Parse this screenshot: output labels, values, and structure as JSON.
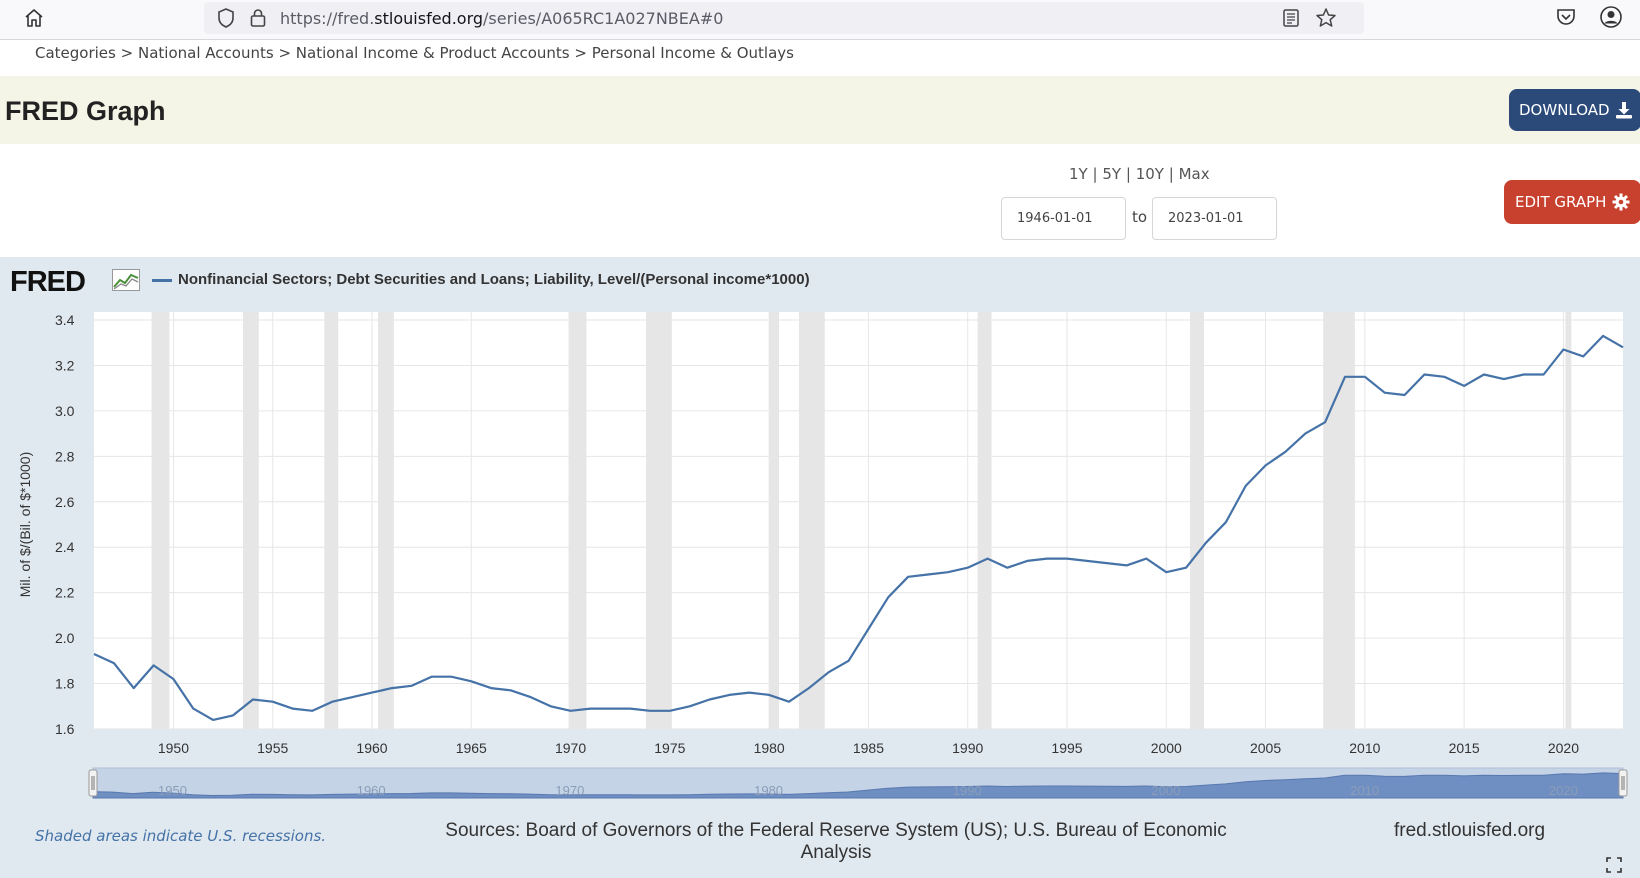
{
  "browser": {
    "url_prefix": "https://fred.",
    "url_domain": "stlouisfed.org",
    "url_path": "/series/A065RC1A027NBEA#0",
    "icons": [
      "home-icon",
      "shield-icon",
      "lock-icon",
      "reader-view-icon",
      "bookmark-star-icon",
      "pocket-icon",
      "account-icon"
    ]
  },
  "breadcrumb": {
    "items": [
      "Categories",
      "National Accounts",
      "National Income & Product Accounts",
      "Personal Income & Outlays"
    ],
    "separator": ">"
  },
  "header": {
    "title": "FRED Graph",
    "download_label": "DOWNLOAD",
    "download_color": "#2b4a7a"
  },
  "controls": {
    "ranges": [
      "1Y",
      "5Y",
      "10Y",
      "Max"
    ],
    "range_separator": "|",
    "start_date": "1946-01-01",
    "to_label": "to",
    "end_date": "2023-01-01",
    "edit_label": "EDIT GRAPH",
    "edit_color": "#c8402e"
  },
  "graph": {
    "logo_text": "FRED",
    "legend_label": "Nonfinancial Sectors; Debt Securities and Loans; Liability, Level/(Personal income*1000)",
    "recession_note": "Shaded areas indicate U.S. recessions.",
    "sources_line1": "Sources: Board of Governors of the Federal Reserve System (US); U.S. Bureau of Economic",
    "sources_line2": "Analysis",
    "site": "fred.stlouisfed.org"
  },
  "chart_data": {
    "type": "line",
    "title": "",
    "ylabel": "Mil. of $/(Bil. of $*1000)",
    "xlabel": "",
    "ylim": [
      1.6,
      3.4
    ],
    "xlim": [
      1946,
      2023
    ],
    "yticks": [
      "1.6",
      "1.8",
      "2.0",
      "2.2",
      "2.4",
      "2.6",
      "2.8",
      "3.0",
      "3.2",
      "3.4"
    ],
    "xticks": [
      "1950",
      "1955",
      "1960",
      "1965",
      "1970",
      "1975",
      "1980",
      "1985",
      "1990",
      "1995",
      "2000",
      "2005",
      "2010",
      "2015",
      "2020"
    ],
    "navigator_ticks": [
      "1950",
      "1960",
      "1970",
      "1980",
      "1990",
      "2000",
      "2010",
      "2020"
    ],
    "grid": true,
    "line_color": "#4572a7",
    "recession_color": "#e6e6e6",
    "recessions": [
      [
        1948.9,
        1949.8
      ],
      [
        1953.5,
        1954.3
      ],
      [
        1957.6,
        1958.3
      ],
      [
        1960.3,
        1961.1
      ],
      [
        1969.9,
        1970.8
      ],
      [
        1973.8,
        1975.1
      ],
      [
        1980.0,
        1980.5
      ],
      [
        1981.5,
        1982.8
      ],
      [
        1990.5,
        1991.2
      ],
      [
        2001.2,
        2001.9
      ],
      [
        2007.9,
        2009.5
      ],
      [
        2020.1,
        2020.4
      ]
    ],
    "series": [
      {
        "name": "Nonfinancial Sectors; Debt Securities and Loans; Liability, Level/(Personal income*1000)",
        "x": [
          1946,
          1947,
          1948,
          1949,
          1950,
          1951,
          1952,
          1953,
          1954,
          1955,
          1956,
          1957,
          1958,
          1959,
          1960,
          1961,
          1962,
          1963,
          1964,
          1965,
          1966,
          1967,
          1968,
          1969,
          1970,
          1971,
          1972,
          1973,
          1974,
          1975,
          1976,
          1977,
          1978,
          1979,
          1980,
          1981,
          1982,
          1983,
          1984,
          1985,
          1986,
          1987,
          1988,
          1989,
          1990,
          1991,
          1992,
          1993,
          1994,
          1995,
          1996,
          1997,
          1998,
          1999,
          2000,
          2001,
          2002,
          2003,
          2004,
          2005,
          2006,
          2007,
          2008,
          2009,
          2010,
          2011,
          2012,
          2013,
          2014,
          2015,
          2016,
          2017,
          2018,
          2019,
          2020,
          2021,
          2022,
          2023
        ],
        "y": [
          1.93,
          1.89,
          1.78,
          1.88,
          1.82,
          1.69,
          1.64,
          1.66,
          1.73,
          1.72,
          1.69,
          1.68,
          1.72,
          1.74,
          1.76,
          1.78,
          1.79,
          1.83,
          1.83,
          1.81,
          1.78,
          1.77,
          1.74,
          1.7,
          1.68,
          1.69,
          1.69,
          1.69,
          1.68,
          1.68,
          1.7,
          1.73,
          1.75,
          1.76,
          1.75,
          1.72,
          1.78,
          1.85,
          1.9,
          2.04,
          2.18,
          2.27,
          2.28,
          2.29,
          2.31,
          2.35,
          2.31,
          2.34,
          2.35,
          2.35,
          2.34,
          2.33,
          2.32,
          2.35,
          2.29,
          2.31,
          2.42,
          2.51,
          2.67,
          2.76,
          2.82,
          2.9,
          2.95,
          3.15,
          3.15,
          3.08,
          3.07,
          3.16,
          3.15,
          3.11,
          3.16,
          3.14,
          3.16,
          3.16,
          3.27,
          3.24,
          3.33,
          3.28
        ]
      }
    ]
  }
}
